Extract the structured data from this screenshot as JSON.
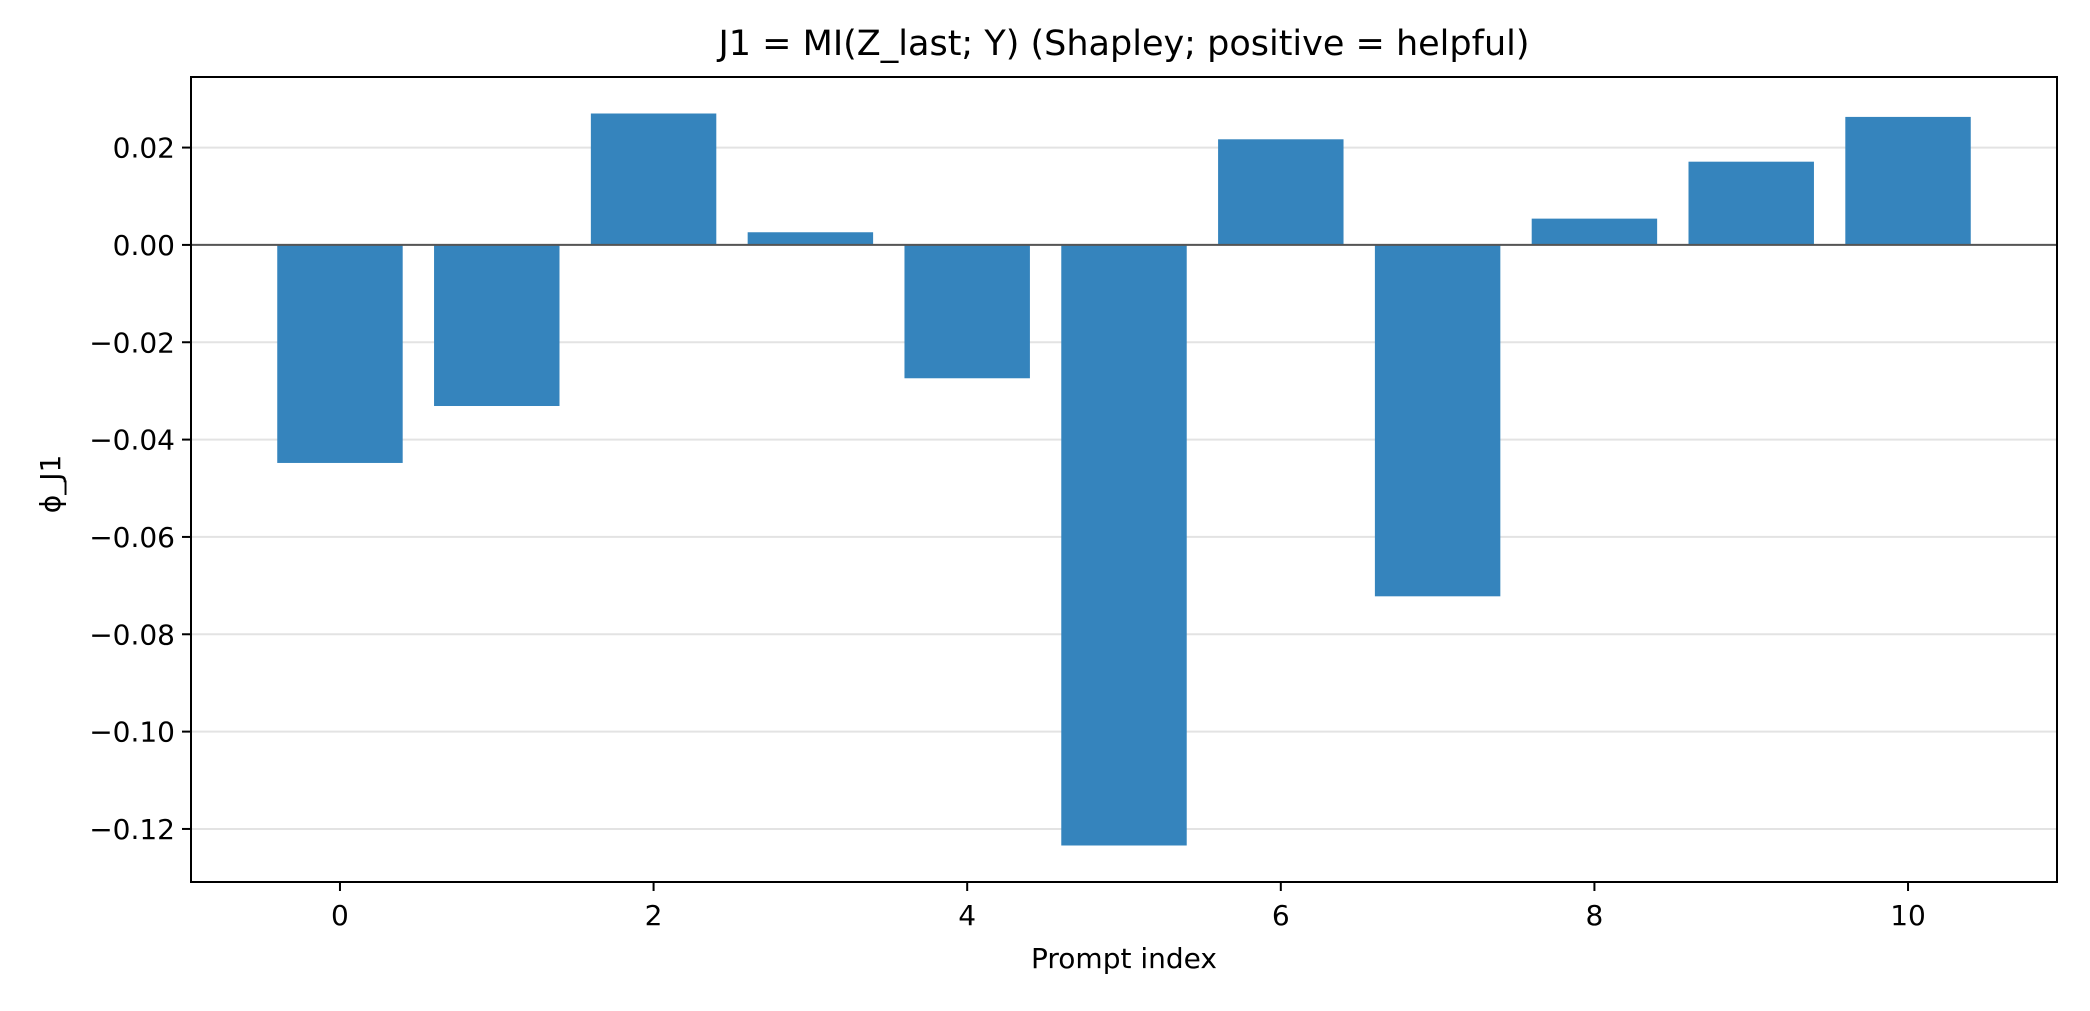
{
  "chart_data": {
    "type": "bar",
    "title": "J1 = MI(Z_last; Y) (Shapley; positive = helpful)",
    "xlabel": "Prompt index",
    "ylabel": "ϕ_J1",
    "categories": [
      0,
      1,
      2,
      3,
      4,
      5,
      6,
      7,
      8,
      9,
      10
    ],
    "values": [
      -0.0448,
      -0.0331,
      0.027,
      0.0026,
      -0.0274,
      -0.1234,
      0.0217,
      -0.0722,
      0.0054,
      0.0171,
      0.0263
    ],
    "xlim": [
      -0.95,
      10.95
    ],
    "ylim": [
      -0.1309,
      0.0345
    ],
    "xticks": [
      0,
      2,
      4,
      6,
      8,
      10
    ],
    "xtick_labels": [
      "0",
      "2",
      "4",
      "6",
      "8",
      "10"
    ],
    "yticks": [
      0.02,
      0.0,
      -0.02,
      -0.04,
      -0.06,
      -0.08,
      -0.1,
      -0.12
    ],
    "ytick_labels": [
      "0.02",
      "0.00",
      "−0.02",
      "−0.04",
      "−0.06",
      "−0.08",
      "−0.10",
      "−0.12"
    ],
    "grid": "y",
    "zero_line": true,
    "bar_color": "#3584bd",
    "grid_color": "#e3e3e3",
    "zero_line_color": "#555555"
  }
}
